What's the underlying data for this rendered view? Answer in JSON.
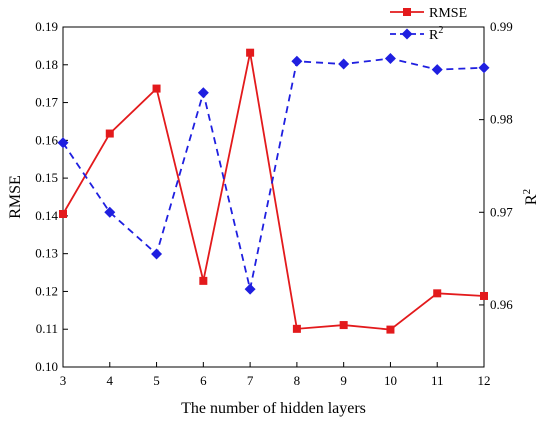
{
  "chart_data": {
    "type": "line",
    "xlabel": "The number of hidden layers",
    "ylabel_left": "RMSE",
    "ylabel_right": "R",
    "ylabel_right_sup": "2",
    "x": [
      3,
      4,
      5,
      6,
      7,
      8,
      9,
      10,
      11,
      12
    ],
    "xlim": [
      3,
      12
    ],
    "xticks": [
      "3",
      "4",
      "5",
      "6",
      "7",
      "8",
      "9",
      "10",
      "11",
      "12"
    ],
    "ylim_left": [
      0.1,
      0.19
    ],
    "yticks_left": [
      "0.10",
      "0.11",
      "0.12",
      "0.13",
      "0.14",
      "0.15",
      "0.16",
      "0.17",
      "0.18",
      "0.19"
    ],
    "ylim_right": [
      0.9533,
      0.99
    ],
    "yticks_right": [
      {
        "value": 0.96,
        "label": "0.96"
      },
      {
        "value": 0.97,
        "label": "0.97"
      },
      {
        "value": 0.98,
        "label": "0.98"
      },
      {
        "value": 0.99,
        "label": "0.99"
      }
    ],
    "grid": false,
    "legend_position": "top-right",
    "series": [
      {
        "name": "RMSE",
        "axis": "left",
        "color": "#e31a1c",
        "line_style": "solid",
        "marker": "square",
        "values": [
          0.1405,
          0.1618,
          0.1737,
          0.1228,
          0.1832,
          0.1101,
          0.1111,
          0.1099,
          0.1195,
          0.1188
        ]
      },
      {
        "name": "R",
        "name_sup": "2",
        "axis": "right",
        "color": "#1f1fe0",
        "line_style": "dashed",
        "marker": "diamond",
        "values": [
          0.9775,
          0.97,
          0.9655,
          0.9829,
          0.9617,
          0.9863,
          0.986,
          0.9866,
          0.9854,
          0.9856
        ]
      }
    ]
  }
}
